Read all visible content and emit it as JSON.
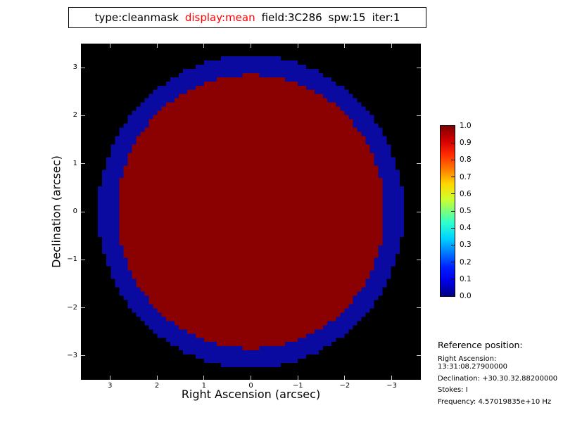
{
  "title_box": {
    "segments": [
      {
        "text": "type:cleanmask",
        "color": "#000000"
      },
      {
        "text": "display:mean",
        "color": "#ff0000"
      },
      {
        "text": "field:3C286",
        "color": "#000000"
      },
      {
        "text": "spw:15",
        "color": "#000000"
      },
      {
        "text": "iter:1",
        "color": "#000000"
      }
    ]
  },
  "chart_data": {
    "type": "heatmap",
    "title": "type:cleanmask display:mean field:3C286 spw:15 iter:1",
    "xlabel": "Right Ascension (arcsec)",
    "ylabel": "Declination (arcsec)",
    "x_ticks": [
      "3",
      "2",
      "1",
      "0",
      "−1",
      "−2",
      "−3"
    ],
    "x_tick_values": [
      3,
      2,
      1,
      0,
      -1,
      -2,
      -3
    ],
    "y_ticks": [
      "3",
      "2",
      "1",
      "0",
      "−1",
      "−2",
      "−3"
    ],
    "y_tick_values": [
      3,
      2,
      1,
      0,
      -1,
      -2,
      -3
    ],
    "x_range": [
      3.62,
      -3.62
    ],
    "y_range": [
      3.5,
      -3.5
    ],
    "x_axis_inverted": true,
    "grid_resolution": 80,
    "background_color": "#000000",
    "background_value": 0.0,
    "regions": [
      {
        "name": "mask-interior-disk",
        "shape": "circle",
        "center_arcsec": [
          0,
          0
        ],
        "radius_arcsec": 2.85,
        "value": 1.0,
        "color": "#8b0000"
      },
      {
        "name": "mask-edge-ring",
        "shape": "annulus",
        "center_arcsec": [
          0,
          0
        ],
        "inner_radius_arcsec": 2.85,
        "outer_radius_arcsec": 3.25,
        "value_approx": 0.05,
        "color": "#0a0aa0"
      }
    ],
    "colorbar": {
      "min": 0.0,
      "max": 1.0,
      "colormap": "jet",
      "position": "right",
      "ticks": [
        "1.0",
        "0.9",
        "0.8",
        "0.7",
        "0.6",
        "0.5",
        "0.4",
        "0.3",
        "0.2",
        "0.1",
        "0.0"
      ]
    }
  },
  "reference": {
    "heading": "Reference position:",
    "lines": [
      "Right Ascension: 13:31:08.27900000",
      "Declination: +30.30.32.88200000",
      "Stokes: I",
      "Frequency: 4.57019835e+10 Hz"
    ]
  }
}
